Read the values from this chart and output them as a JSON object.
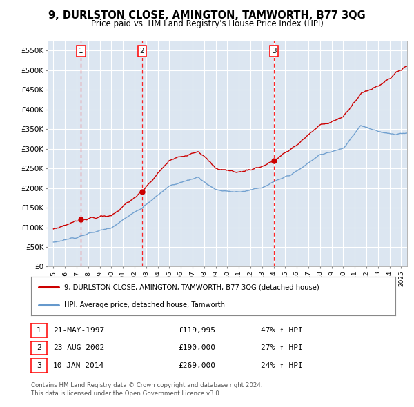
{
  "title": "9, DURLSTON CLOSE, AMINGTON, TAMWORTH, B77 3QG",
  "subtitle": "Price paid vs. HM Land Registry's House Price Index (HPI)",
  "property_label": "9, DURLSTON CLOSE, AMINGTON, TAMWORTH, B77 3QG (detached house)",
  "hpi_label": "HPI: Average price, detached house, Tamworth",
  "sales": [
    {
      "date": 1997.38,
      "price": 119995,
      "label": "1",
      "annotation": "21-MAY-1997",
      "amount": "£119,995",
      "change": "47% ↑ HPI"
    },
    {
      "date": 2002.64,
      "price": 190000,
      "label": "2",
      "annotation": "23-AUG-2002",
      "amount": "£190,000",
      "change": "27% ↑ HPI"
    },
    {
      "date": 2014.03,
      "price": 269000,
      "label": "3",
      "annotation": "10-JAN-2014",
      "amount": "£269,000",
      "change": "24% ↑ HPI"
    }
  ],
  "xlim": [
    1994.5,
    2025.5
  ],
  "ylim": [
    0,
    575000
  ],
  "yticks": [
    0,
    50000,
    100000,
    150000,
    200000,
    250000,
    300000,
    350000,
    400000,
    450000,
    500000,
    550000
  ],
  "ytick_labels": [
    "£0",
    "£50K",
    "£100K",
    "£150K",
    "£200K",
    "£250K",
    "£300K",
    "£350K",
    "£400K",
    "£450K",
    "£500K",
    "£550K"
  ],
  "xticks": [
    1995,
    1996,
    1997,
    1998,
    1999,
    2000,
    2001,
    2002,
    2003,
    2004,
    2005,
    2006,
    2007,
    2008,
    2009,
    2010,
    2011,
    2012,
    2013,
    2014,
    2015,
    2016,
    2017,
    2018,
    2019,
    2020,
    2021,
    2022,
    2023,
    2024,
    2025
  ],
  "plot_bg_color": "#dce6f1",
  "outer_bg": "#ffffff",
  "property_color": "#cc0000",
  "hpi_color": "#6699cc",
  "grid_color": "#ffffff",
  "footnote": "Contains HM Land Registry data © Crown copyright and database right 2024.\nThis data is licensed under the Open Government Licence v3.0.",
  "prop_anchors_x": [
    1995.0,
    1997.38,
    2000.0,
    2002.64,
    2005.0,
    2007.5,
    2009.0,
    2011.0,
    2013.0,
    2014.03,
    2016.0,
    2018.0,
    2020.0,
    2021.5,
    2023.0,
    2024.5,
    2025.3
  ],
  "prop_anchors_y": [
    95000,
    119995,
    130000,
    190000,
    270000,
    295000,
    250000,
    240000,
    255000,
    269000,
    310000,
    360000,
    380000,
    440000,
    460000,
    490000,
    510000
  ],
  "hpi_anchors_x": [
    1995.0,
    1997.0,
    2000.0,
    2002.64,
    2005.0,
    2007.5,
    2009.0,
    2011.0,
    2013.0,
    2014.03,
    2016.0,
    2018.0,
    2020.0,
    2021.5,
    2023.0,
    2024.5,
    2025.3
  ],
  "hpi_anchors_y": [
    62000,
    75000,
    100000,
    150000,
    205000,
    228000,
    195000,
    190000,
    200000,
    215000,
    242000,
    285000,
    300000,
    360000,
    345000,
    335000,
    340000
  ]
}
